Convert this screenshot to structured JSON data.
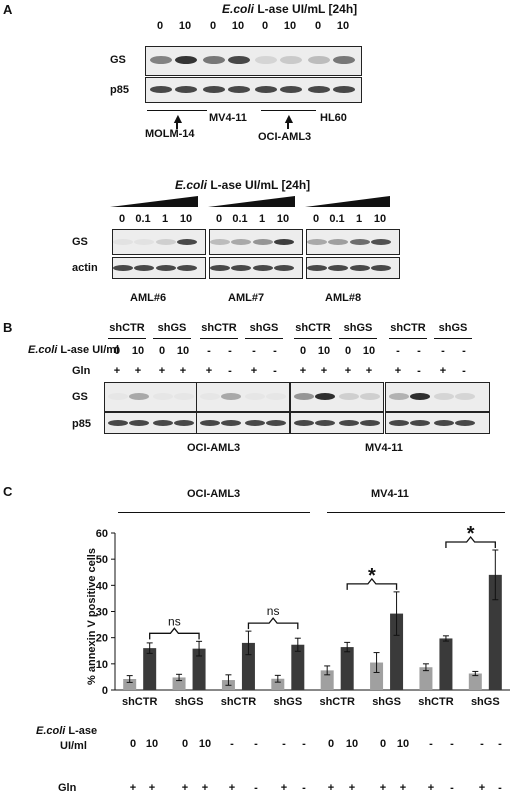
{
  "panelA": {
    "letter": "A",
    "title_italic": "E.coli",
    "title_rest": " L-ase UI/mL [24h]",
    "doses": [
      "0",
      "10",
      "0",
      "10",
      "0",
      "10",
      "0",
      "10"
    ],
    "rows": [
      "GS",
      "p85"
    ],
    "cell_lines": {
      "molm": "MOLM-14",
      "mv4": "MV4-11",
      "oci": "OCI-AML3",
      "hl60": "HL60"
    },
    "sub_title_italic": "E.coli",
    "sub_title_rest": " L-ase UI/mL [24h]",
    "sub_doses": [
      "0",
      "0.1",
      "1",
      "10"
    ],
    "sub_rows": [
      "GS",
      "actin"
    ],
    "patients": [
      "AML#6",
      "AML#7",
      "AML#8"
    ]
  },
  "panelB": {
    "letter": "B",
    "groups": [
      "shCTR",
      "shGS",
      "shCTR",
      "shGS",
      "shCTR",
      "shGS",
      "shCTR",
      "shGS"
    ],
    "lase_italic": "E.coli",
    "lase_rest": " L-ase UI/ml",
    "lase_values": [
      "0",
      "10",
      "0",
      "10",
      "-",
      "-",
      "-",
      "-",
      "0",
      "10",
      "0",
      "10",
      "-",
      "-",
      "-",
      "-"
    ],
    "gln_label": "Gln",
    "gln_values": [
      "+",
      "+",
      "+",
      "+",
      "+",
      "-",
      "+",
      "-",
      "+",
      "+",
      "+",
      "+",
      "+",
      "-",
      "+",
      "-"
    ],
    "rows": [
      "GS",
      "p85"
    ],
    "cell_lines": [
      "OCI-AML3",
      "MV4-11"
    ]
  },
  "panelC": {
    "letter": "C",
    "cell_lines": [
      "OCI-AML3",
      "MV4-11"
    ],
    "lase_italic": "E.coli",
    "lase_rest": " L-ase",
    "lase_rest2": "UI/ml",
    "lase_values": [
      "0",
      "10",
      "0",
      "10",
      "-",
      "-",
      "-",
      "-",
      "0",
      "10",
      "0",
      "10",
      "-",
      "-",
      "-",
      "-"
    ],
    "gln_label": "Gln",
    "gln_values": [
      "+",
      "+",
      "+",
      "+",
      "+",
      "-",
      "+",
      "-",
      "+",
      "+",
      "+",
      "+",
      "+",
      "-",
      "+",
      "-"
    ],
    "significance": [
      {
        "text": "ns",
        "groups": [
          0,
          1
        ]
      },
      {
        "text": "ns",
        "groups": [
          2,
          3
        ]
      },
      {
        "text": "*",
        "groups": [
          4,
          5
        ]
      },
      {
        "text": "*",
        "groups": [
          6,
          7
        ]
      }
    ]
  },
  "chart_data": {
    "type": "bar",
    "ylabel": "% annexin V positive cells",
    "ylim": [
      0,
      60
    ],
    "yticks": [
      0,
      10,
      20,
      30,
      40,
      50,
      60
    ],
    "categories": [
      "shCTR",
      "shGS",
      "shCTR",
      "shGS",
      "shCTR",
      "shGS",
      "shCTR",
      "shGS"
    ],
    "series": [
      {
        "values": [
          4.2,
          4.8,
          3.8,
          4.3,
          7.5,
          10.5,
          8.7,
          6.3
        ],
        "errors": [
          1.3,
          1.2,
          2.0,
          1.3,
          1.7,
          3.8,
          1.3,
          0.8
        ],
        "color": "#a0a0a0"
      },
      {
        "values": [
          16.0,
          15.8,
          18.0,
          17.3,
          16.4,
          29.2,
          19.7,
          44.0
        ],
        "errors": [
          2.0,
          2.8,
          4.5,
          2.5,
          1.8,
          8.3,
          1.0,
          9.5
        ],
        "color": "#3a3a3a"
      }
    ]
  }
}
